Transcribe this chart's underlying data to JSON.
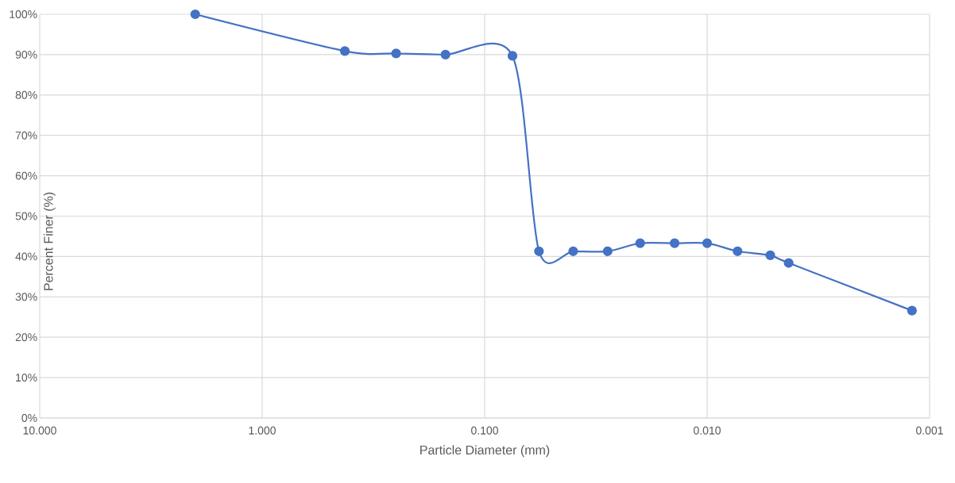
{
  "chart_data": {
    "type": "line",
    "xlabel": "Particle Diameter (mm)",
    "ylabel": "Percent Finer (%)",
    "log": "x",
    "x": [
      2.0,
      0.425,
      0.25,
      0.15,
      0.075,
      0.057,
      0.04,
      0.028,
      0.02,
      0.014,
      0.01,
      0.0073,
      0.0052,
      0.0043,
      0.0012
    ],
    "series": [
      {
        "color": "#4472c4",
        "values": [
          100,
          90.9,
          90.3,
          90.0,
          89.7,
          41.3,
          41.3,
          41.3,
          43.3,
          43.3,
          43.3,
          41.3,
          40.3,
          38.4,
          26.6
        ]
      }
    ],
    "xlim": [
      10,
      0.001
    ],
    "xticks": [
      {
        "value": 10,
        "label": "10.000"
      },
      {
        "value": 1,
        "label": "1.000"
      },
      {
        "value": 0.1,
        "label": "0.100"
      },
      {
        "value": 0.01,
        "label": "0.010"
      },
      {
        "value": 0.001,
        "label": "0.001"
      }
    ],
    "ylim": [
      0,
      100
    ],
    "yticks": [
      {
        "value": 0,
        "label": "0%"
      },
      {
        "value": 10,
        "label": "10%"
      },
      {
        "value": 20,
        "label": "20%"
      },
      {
        "value": 30,
        "label": "30%"
      },
      {
        "value": 40,
        "label": "40%"
      },
      {
        "value": 50,
        "label": "50%"
      },
      {
        "value": 60,
        "label": "60%"
      },
      {
        "value": 70,
        "label": "70%"
      },
      {
        "value": 80,
        "label": "80%"
      },
      {
        "value": 90,
        "label": "90%"
      },
      {
        "value": 100,
        "label": "100%"
      }
    ],
    "grid": true,
    "marker": "circle",
    "line_style": "solid"
  }
}
